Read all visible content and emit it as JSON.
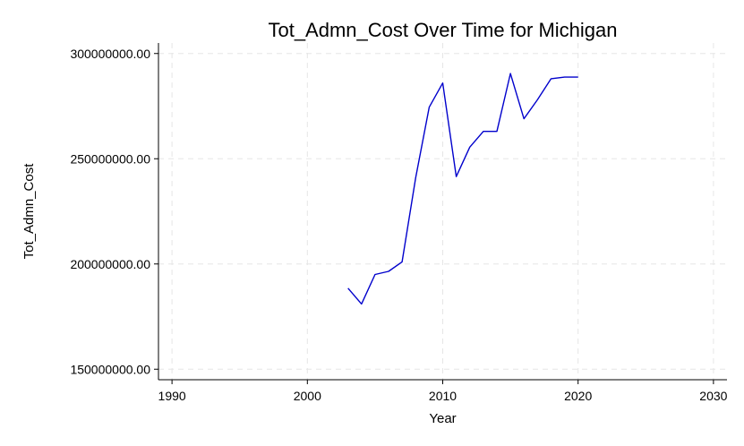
{
  "chart_data": {
    "type": "line",
    "title": "Tot_Admn_Cost Over Time for Michigan",
    "xlabel": "Year",
    "ylabel": "Tot_Admn_Cost",
    "xlim": [
      1989,
      2031
    ],
    "ylim": [
      145000000,
      305000000
    ],
    "xticks": [
      1990,
      2000,
      2010,
      2020,
      2030
    ],
    "yticks": [
      150000000,
      200000000,
      250000000,
      300000000
    ],
    "ytick_labels": [
      "150000000.00",
      "200000000.00",
      "250000000.00",
      "300000000.00"
    ],
    "grid": true,
    "line_color": "#0000cc",
    "series": [
      {
        "x": [
          2003,
          2004,
          2005,
          2006,
          2007,
          2008,
          2009,
          2010,
          2011,
          2012,
          2013,
          2014,
          2015,
          2016,
          2017,
          2018,
          2019,
          2020
        ],
        "values": [
          188500000,
          181000000,
          195000000,
          196500000,
          201000000,
          241000000,
          274500000,
          286000000,
          241500000,
          255500000,
          263000000,
          263000000,
          290500000,
          269000000,
          278000000,
          288000000,
          288800000,
          288800000
        ]
      }
    ]
  }
}
